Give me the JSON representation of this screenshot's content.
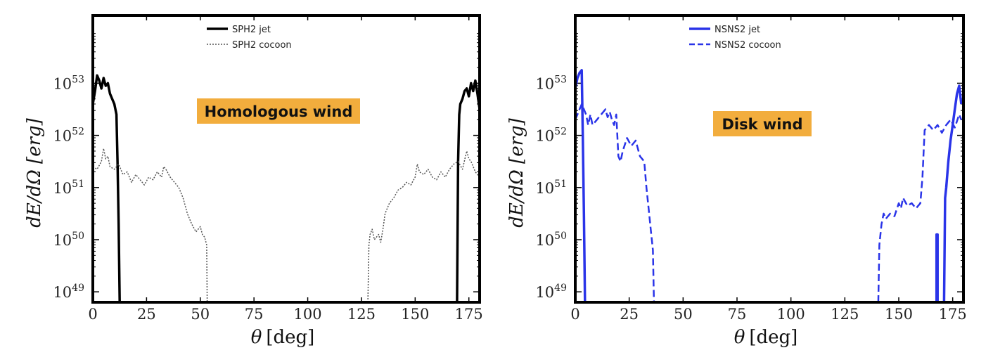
{
  "chart_data": [
    {
      "type": "line",
      "xlabel_symbol": "θ",
      "xlabel_unit": "[deg]",
      "ylabel": "dE/dΩ [erg]",
      "xlim": [
        0,
        180
      ],
      "ylim_log10": [
        48.8,
        54.3
      ],
      "yscale": "log",
      "x_ticks": [
        0,
        25,
        50,
        75,
        100,
        125,
        150,
        175
      ],
      "y_ticks": [
        {
          "base": "10",
          "exp": "49",
          "log10": 49
        },
        {
          "base": "10",
          "exp": "50",
          "log10": 50
        },
        {
          "base": "10",
          "exp": "51",
          "log10": 51
        },
        {
          "base": "10",
          "exp": "52",
          "log10": 52
        },
        {
          "base": "10",
          "exp": "53",
          "log10": 53
        }
      ],
      "annotation": "Homologous wind",
      "annotation_color": "#f2ad3d",
      "legend_placement": "top-center",
      "series": [
        {
          "name": "SPH2 jet",
          "style": "solid",
          "color": "#000000",
          "x": [
            0,
            1,
            2,
            3,
            4,
            5,
            6,
            7,
            8,
            9,
            10,
            11,
            11.5,
            12,
            12.5
          ],
          "log10_y": [
            52.6,
            52.85,
            53.15,
            53.05,
            52.9,
            53.1,
            52.95,
            53.0,
            52.8,
            52.7,
            52.6,
            52.4,
            51.5,
            50.3,
            48.8
          ]
        },
        {
          "name": "SPH2 cocoon",
          "style": "dotted",
          "color": "#555555",
          "x": [
            0,
            2,
            4,
            5,
            6,
            7,
            8,
            10,
            12,
            14,
            16,
            18,
            20,
            22,
            24,
            26,
            28,
            30,
            32,
            33,
            34,
            36,
            38,
            40,
            42,
            43,
            44,
            46,
            48,
            50,
            51,
            52,
            53,
            53.2
          ],
          "log10_y": [
            51.4,
            51.35,
            51.5,
            51.75,
            51.55,
            51.6,
            51.4,
            51.35,
            51.45,
            51.25,
            51.3,
            51.1,
            51.25,
            51.15,
            51.05,
            51.2,
            51.15,
            51.3,
            51.2,
            51.4,
            51.35,
            51.2,
            51.1,
            51.0,
            50.8,
            50.65,
            50.5,
            50.3,
            50.15,
            50.25,
            50.1,
            50.05,
            49.9,
            48.8
          ]
        },
        {
          "name": "SPH2 jet",
          "style": "solid",
          "color": "#000000",
          "x": [
            169.5,
            170,
            170.5,
            171,
            172,
            173,
            174,
            175,
            176,
            177,
            178,
            179,
            180
          ],
          "log10_y": [
            48.8,
            51.5,
            52.4,
            52.6,
            52.7,
            52.85,
            52.9,
            52.75,
            53.0,
            52.85,
            53.05,
            52.8,
            52.5
          ]
        },
        {
          "name": "SPH2 cocoon",
          "style": "dotted",
          "color": "#555555",
          "x": [
            128,
            128.5,
            129,
            130,
            131,
            132,
            133,
            134,
            135,
            136,
            138,
            140,
            142,
            144,
            146,
            148,
            150,
            151,
            152,
            154,
            156,
            158,
            160,
            162,
            164,
            166,
            168,
            170,
            172,
            174,
            175,
            176,
            178,
            180
          ],
          "log10_y": [
            48.8,
            49.9,
            50.1,
            50.2,
            50.0,
            50.05,
            50.1,
            49.95,
            50.2,
            50.5,
            50.7,
            50.8,
            50.95,
            51.0,
            51.1,
            51.05,
            51.2,
            51.45,
            51.3,
            51.25,
            51.35,
            51.2,
            51.15,
            51.3,
            51.2,
            51.35,
            51.45,
            51.5,
            51.35,
            51.7,
            51.55,
            51.5,
            51.3,
            51.2
          ]
        }
      ]
    },
    {
      "type": "line",
      "xlabel_symbol": "θ",
      "xlabel_unit": "[deg]",
      "ylabel": "dE/dΩ [erg]",
      "xlim": [
        0,
        180
      ],
      "ylim_log10": [
        48.8,
        54.3
      ],
      "yscale": "log",
      "x_ticks": [
        0,
        25,
        50,
        75,
        100,
        125,
        150,
        175
      ],
      "y_ticks": [
        {
          "base": "10",
          "exp": "49",
          "log10": 49
        },
        {
          "base": "10",
          "exp": "50",
          "log10": 50
        },
        {
          "base": "10",
          "exp": "51",
          "log10": 51
        },
        {
          "base": "10",
          "exp": "52",
          "log10": 52
        },
        {
          "base": "10",
          "exp": "53",
          "log10": 53
        }
      ],
      "annotation": "Disk wind",
      "annotation_color": "#f2ad3d",
      "legend_placement": "top-center",
      "series": [
        {
          "name": "NSNS2 jet",
          "style": "solid",
          "color": "#2a34e8",
          "x": [
            0,
            1,
            2,
            3,
            3.5,
            4,
            4.5
          ],
          "log10_y": [
            52.9,
            53.1,
            53.2,
            53.25,
            52.0,
            50.5,
            48.8
          ]
        },
        {
          "name": "NSNS2 cocoon",
          "style": "dashed",
          "color": "#2a34e8",
          "x": [
            0,
            1,
            2,
            3,
            4,
            5,
            6,
            7,
            8,
            10,
            12,
            14,
            15,
            16,
            17,
            18,
            19,
            20,
            21,
            22,
            24,
            26,
            28,
            30,
            32,
            33,
            34,
            35,
            36,
            36.5
          ],
          "log10_y": [
            52.3,
            52.4,
            52.5,
            52.6,
            52.5,
            52.4,
            52.2,
            52.4,
            52.2,
            52.3,
            52.4,
            52.5,
            52.35,
            52.45,
            52.3,
            52.2,
            52.4,
            51.6,
            51.5,
            51.7,
            51.95,
            51.8,
            51.9,
            51.6,
            51.5,
            51.0,
            50.6,
            50.2,
            49.8,
            48.8
          ]
        },
        {
          "name": "NSNS2 cocoon",
          "style": "dashed",
          "color": "#2a34e8",
          "x": [
            140.5,
            141,
            142,
            143,
            144,
            146,
            148,
            150,
            151,
            152,
            154,
            156,
            158,
            160,
            161,
            162,
            164,
            166,
            168,
            170,
            172,
            174,
            176,
            178,
            179
          ],
          "log10_y": [
            48.8,
            49.9,
            50.3,
            50.5,
            50.4,
            50.5,
            50.45,
            50.7,
            50.6,
            50.8,
            50.65,
            50.7,
            50.6,
            50.7,
            51.2,
            52.1,
            52.2,
            52.1,
            52.2,
            52.05,
            52.2,
            52.3,
            52.15,
            52.4,
            52.3
          ]
        },
        {
          "name": "NSNS2 jet",
          "style": "solid",
          "color": "#2a34e8",
          "x": [
            167.5,
            167.5,
            168,
            168
          ],
          "log10_y": [
            48.8,
            50.1,
            50.1,
            48.8
          ]
        },
        {
          "name": "NSNS2 jet",
          "style": "solid",
          "color": "#2a34e8",
          "x": [
            171,
            171.5,
            172,
            173,
            174,
            175,
            176,
            177,
            178,
            179
          ],
          "log10_y": [
            48.8,
            50.8,
            51.0,
            51.5,
            51.9,
            52.2,
            52.5,
            52.8,
            52.95,
            52.6
          ]
        }
      ]
    }
  ]
}
